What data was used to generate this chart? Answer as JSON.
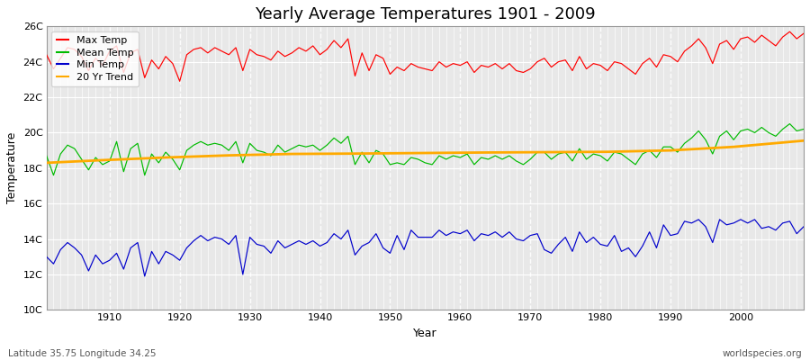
{
  "title": "Yearly Average Temperatures 1901 - 2009",
  "xlabel": "Year",
  "ylabel": "Temperature",
  "footer_left": "Latitude 35.75 Longitude 34.25",
  "footer_right": "worldspecies.org",
  "years": [
    1901,
    1902,
    1903,
    1904,
    1905,
    1906,
    1907,
    1908,
    1909,
    1910,
    1911,
    1912,
    1913,
    1914,
    1915,
    1916,
    1917,
    1918,
    1919,
    1920,
    1921,
    1922,
    1923,
    1924,
    1925,
    1926,
    1927,
    1928,
    1929,
    1930,
    1931,
    1932,
    1933,
    1934,
    1935,
    1936,
    1937,
    1938,
    1939,
    1940,
    1941,
    1942,
    1943,
    1944,
    1945,
    1946,
    1947,
    1948,
    1949,
    1950,
    1951,
    1952,
    1953,
    1954,
    1955,
    1956,
    1957,
    1958,
    1959,
    1960,
    1961,
    1962,
    1963,
    1964,
    1965,
    1966,
    1967,
    1968,
    1969,
    1970,
    1971,
    1972,
    1973,
    1974,
    1975,
    1976,
    1977,
    1978,
    1979,
    1980,
    1981,
    1982,
    1983,
    1984,
    1985,
    1986,
    1987,
    1988,
    1989,
    1990,
    1991,
    1992,
    1993,
    1994,
    1995,
    1996,
    1997,
    1998,
    1999,
    2000,
    2001,
    2002,
    2003,
    2004,
    2005,
    2006,
    2007,
    2008,
    2009
  ],
  "max_temp": [
    24.4,
    23.6,
    24.2,
    24.8,
    24.7,
    24.3,
    23.5,
    24.2,
    23.8,
    24.6,
    24.9,
    23.4,
    24.5,
    24.7,
    23.1,
    24.1,
    23.6,
    24.3,
    23.9,
    22.9,
    24.4,
    24.7,
    24.8,
    24.5,
    24.8,
    24.6,
    24.4,
    24.8,
    23.5,
    24.7,
    24.4,
    24.3,
    24.1,
    24.6,
    24.3,
    24.5,
    24.8,
    24.6,
    24.9,
    24.4,
    24.7,
    25.2,
    24.8,
    25.3,
    23.2,
    24.5,
    23.5,
    24.4,
    24.2,
    23.3,
    23.7,
    23.5,
    23.9,
    23.7,
    23.6,
    23.5,
    24.0,
    23.7,
    23.9,
    23.8,
    24.0,
    23.4,
    23.8,
    23.7,
    23.9,
    23.6,
    23.9,
    23.5,
    23.4,
    23.6,
    24.0,
    24.2,
    23.7,
    24.0,
    24.1,
    23.5,
    24.3,
    23.6,
    23.9,
    23.8,
    23.5,
    24.0,
    23.9,
    23.6,
    23.3,
    23.9,
    24.2,
    23.7,
    24.4,
    24.3,
    24.0,
    24.6,
    24.9,
    25.3,
    24.8,
    23.9,
    25.0,
    25.2,
    24.7,
    25.3,
    25.4,
    25.1,
    25.5,
    25.2,
    24.9,
    25.4,
    25.7,
    25.3,
    25.6
  ],
  "mean_temp": [
    18.7,
    17.6,
    18.8,
    19.3,
    19.1,
    18.5,
    17.9,
    18.6,
    18.2,
    18.4,
    19.5,
    17.8,
    19.1,
    19.4,
    17.6,
    18.8,
    18.3,
    18.9,
    18.5,
    17.9,
    19.0,
    19.3,
    19.5,
    19.3,
    19.4,
    19.3,
    19.0,
    19.5,
    18.3,
    19.4,
    19.0,
    18.9,
    18.7,
    19.3,
    18.9,
    19.1,
    19.3,
    19.2,
    19.3,
    19.0,
    19.3,
    19.7,
    19.4,
    19.8,
    18.2,
    18.9,
    18.3,
    19.0,
    18.8,
    18.2,
    18.3,
    18.2,
    18.6,
    18.5,
    18.3,
    18.2,
    18.7,
    18.5,
    18.7,
    18.6,
    18.8,
    18.2,
    18.6,
    18.5,
    18.7,
    18.5,
    18.7,
    18.4,
    18.2,
    18.5,
    18.9,
    18.9,
    18.5,
    18.8,
    18.9,
    18.4,
    19.1,
    18.5,
    18.8,
    18.7,
    18.4,
    18.9,
    18.8,
    18.5,
    18.2,
    18.8,
    19.0,
    18.6,
    19.2,
    19.2,
    18.9,
    19.4,
    19.7,
    20.1,
    19.6,
    18.8,
    19.8,
    20.1,
    19.6,
    20.1,
    20.2,
    20.0,
    20.3,
    20.0,
    19.8,
    20.2,
    20.5,
    20.1,
    20.2
  ],
  "min_temp": [
    13.0,
    12.6,
    13.4,
    13.8,
    13.5,
    13.1,
    12.2,
    13.1,
    12.6,
    12.8,
    13.2,
    12.3,
    13.5,
    13.8,
    11.9,
    13.3,
    12.6,
    13.3,
    13.1,
    12.8,
    13.5,
    13.9,
    14.2,
    13.9,
    14.1,
    14.0,
    13.7,
    14.2,
    12.0,
    14.1,
    13.7,
    13.6,
    13.2,
    13.9,
    13.5,
    13.7,
    13.9,
    13.7,
    13.9,
    13.6,
    13.8,
    14.3,
    14.0,
    14.5,
    13.1,
    13.6,
    13.8,
    14.3,
    13.5,
    13.2,
    14.2,
    13.4,
    14.5,
    14.1,
    14.1,
    14.1,
    14.5,
    14.2,
    14.4,
    14.3,
    14.5,
    13.9,
    14.3,
    14.2,
    14.4,
    14.1,
    14.4,
    14.0,
    13.9,
    14.2,
    14.3,
    13.4,
    13.2,
    13.7,
    14.1,
    13.3,
    14.4,
    13.8,
    14.1,
    13.7,
    13.6,
    14.2,
    13.3,
    13.5,
    13.0,
    13.6,
    14.4,
    13.5,
    14.8,
    14.2,
    14.3,
    15.0,
    14.9,
    15.1,
    14.7,
    13.8,
    15.1,
    14.8,
    14.9,
    15.1,
    14.9,
    15.1,
    14.6,
    14.7,
    14.5,
    14.9,
    15.0,
    14.3,
    14.7
  ],
  "trend_years": [
    1901,
    1909,
    1918,
    1927,
    1936,
    1945,
    1954,
    1963,
    1972,
    1981,
    1990,
    1999,
    2009
  ],
  "trend_vals": [
    18.3,
    18.45,
    18.6,
    18.72,
    18.8,
    18.82,
    18.85,
    18.88,
    18.9,
    18.92,
    19.0,
    19.2,
    19.55
  ],
  "ylim": [
    10,
    26
  ],
  "yticks": [
    10,
    12,
    14,
    16,
    18,
    20,
    22,
    24,
    26
  ],
  "ytick_labels": [
    "10C",
    "12C",
    "14C",
    "16C",
    "18C",
    "20C",
    "22C",
    "24C",
    "26C"
  ],
  "xlim": [
    1901,
    2009
  ],
  "xticks": [
    1910,
    1920,
    1930,
    1940,
    1950,
    1960,
    1970,
    1980,
    1990,
    2000
  ],
  "vgrid_every": 1,
  "max_color": "#ff0000",
  "mean_color": "#00bb00",
  "min_color": "#0000cc",
  "trend_color": "#ffaa00",
  "bg_color": "#ffffff",
  "plot_bg_color": "#e8e8e8",
  "grid_color": "#ffffff",
  "title_fontsize": 13,
  "label_fontsize": 9,
  "tick_fontsize": 8,
  "legend_fontsize": 8
}
